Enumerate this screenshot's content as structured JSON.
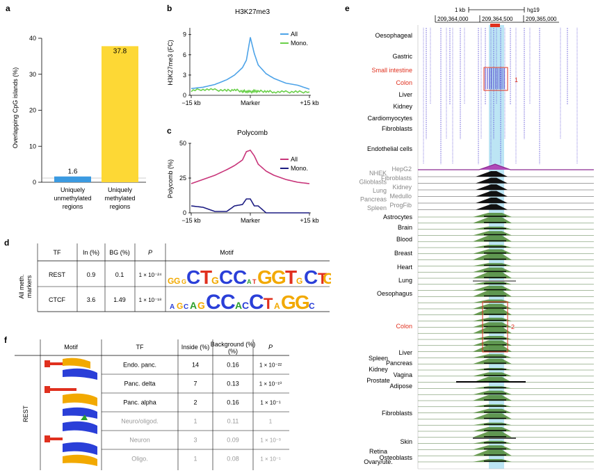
{
  "panel_a": {
    "letter": "a",
    "ylabel": "Overlapping CpG islands (%)",
    "yticks": [
      "0",
      "10",
      "20",
      "30",
      "40"
    ],
    "colors": {
      "unmethylated": "#3b9ae1",
      "methylated": "#fdd835"
    }
  },
  "panel_b": {
    "letter": "b",
    "title": "H3K27me3",
    "ylabel": "H3K27me3 (FC)",
    "yticks": [
      "0",
      "3",
      "6",
      "9"
    ],
    "xticks": [
      "−15 kb",
      "Marker",
      "+15 kb"
    ],
    "legend": [
      "All",
      "Mono."
    ],
    "colors": {
      "all": "#4da3e8",
      "mono": "#6ad04a"
    }
  },
  "panel_c": {
    "letter": "c",
    "title": "Polycomb",
    "ylabel": "Polycomb (%)",
    "yticks": [
      "0",
      "25",
      "50"
    ],
    "xticks": [
      "−15 kb",
      "Marker",
      "+15 kb"
    ],
    "legend": [
      "All",
      "Mono."
    ],
    "colors": {
      "all": "#c8357a",
      "mono": "#1c1c82"
    }
  },
  "chart_data": [
    {
      "type": "bar",
      "categories": [
        "Uniquely unmethylated regions",
        "Uniquely methylated regions"
      ],
      "values": [
        1.6,
        37.8
      ],
      "ylim": [
        0,
        40
      ],
      "ylabel": "Overlapping CpG islands (%)"
    },
    {
      "type": "line",
      "title": "H3K27me3",
      "ylabel": "H3K27me3 (FC)",
      "x": [
        -15,
        -12,
        -9,
        -6,
        -4,
        -2,
        -1,
        0,
        1,
        2,
        4,
        6,
        9,
        12,
        15
      ],
      "ylim": [
        0,
        10
      ],
      "series": [
        {
          "name": "All",
          "values": [
            1.0,
            1.2,
            1.6,
            2.3,
            3.0,
            4.1,
            5.2,
            8.6,
            6.2,
            4.5,
            3.2,
            2.5,
            1.8,
            1.5,
            0.9
          ]
        },
        {
          "name": "Mono.",
          "values": [
            0.7,
            0.9,
            0.8,
            0.7,
            0.8,
            0.6,
            0.6,
            0.5,
            0.6,
            0.6,
            0.6,
            0.5,
            0.5,
            0.5,
            0.5
          ]
        }
      ]
    },
    {
      "type": "line",
      "title": "Polycomb",
      "ylabel": "Polycomb (%)",
      "x": [
        -15,
        -12,
        -9,
        -6,
        -4,
        -2,
        -1,
        0,
        1,
        2,
        4,
        6,
        9,
        12,
        15
      ],
      "ylim": [
        0,
        50
      ],
      "series": [
        {
          "name": "All",
          "values": [
            21,
            24,
            27,
            31,
            34,
            38,
            44,
            45,
            41,
            35,
            30,
            27,
            24,
            22,
            21
          ]
        },
        {
          "name": "Mono.",
          "values": [
            5,
            4,
            1,
            1,
            5,
            6,
            10,
            10,
            5,
            5,
            0,
            0,
            0,
            0,
            0
          ]
        }
      ]
    }
  ],
  "panel_a_bars": [
    {
      "label_lines": [
        "Uniquely",
        "unmethylated",
        "regions"
      ],
      "value_label": "1.6"
    },
    {
      "label_lines": [
        "Uniquely",
        "methylated",
        "regions"
      ],
      "value_label": "37.8"
    }
  ],
  "panel_d": {
    "letter": "d",
    "headers": [
      "TF",
      "In (%)",
      "BG (%)",
      "P",
      "Motif"
    ],
    "row_group_label": [
      "All meth.",
      "markers"
    ],
    "rows": [
      {
        "tf": "REST",
        "in": "0.9",
        "bg": "0.1",
        "p": "1 × 10⁻²⁴"
      },
      {
        "tf": "CTCF",
        "in": "3.6",
        "bg": "1.49",
        "p": "1 × 10⁻¹⁸"
      }
    ]
  },
  "panel_f": {
    "letter": "f",
    "headers": [
      "Motif",
      "TF",
      "Inside (%)",
      "Background (%)",
      "P"
    ],
    "group_label": "REST",
    "rows": [
      {
        "tf": "Endo. panc.",
        "inside": "14",
        "bg": "0.16",
        "p": "1 × 10⁻²²",
        "muted": false
      },
      {
        "tf": "Panc. delta",
        "inside": "7",
        "bg": "0.13",
        "p": "1 × 10⁻¹⁰",
        "muted": false
      },
      {
        "tf": "Panc. alpha",
        "inside": "2",
        "bg": "0.16",
        "p": "1 × 10⁻¹",
        "muted": false
      },
      {
        "tf": "Neuro/oligod.",
        "inside": "1",
        "bg": "0.11",
        "p": "1",
        "muted": true
      },
      {
        "tf": "Neuron",
        "inside": "3",
        "bg": "0.09",
        "p": "1 × 10⁻³",
        "muted": true
      },
      {
        "tf": "Oligo.",
        "inside": "1",
        "bg": "0.08",
        "p": "1 × 10⁻¹",
        "muted": true
      }
    ]
  },
  "panel_e": {
    "letter": "e",
    "scale_label": "1 kb",
    "genome": "hg19",
    "coords": [
      "209,364,000",
      "209,364,500",
      "209,365,000"
    ],
    "box1": "1",
    "box2": "2",
    "top_tracks": [
      {
        "label": "Oesophageal",
        "color": "#000"
      },
      {
        "label": "Gastric",
        "color": "#000"
      },
      {
        "label": "Small intestine",
        "color": "#e0301e"
      },
      {
        "label": "Colon",
        "color": "#e0301e"
      },
      {
        "label": "Liver",
        "color": "#000"
      },
      {
        "label": "Kidney",
        "color": "#000"
      },
      {
        "label": "Cardiomyocytes",
        "color": "#000"
      },
      {
        "label": "Fibroblasts",
        "color": "#000"
      },
      {
        "label": "Endothelial cells",
        "color": "#000"
      }
    ],
    "grey_left": [
      "NHEK",
      "Glioblasts",
      "Lung",
      "Pancreas",
      "Spleen"
    ],
    "grey_right": [
      "HepG2",
      "Fibroblasts",
      "Kidney",
      "Medullo",
      "ProgFib"
    ],
    "bottom_tracks": [
      {
        "label": "Astrocytes",
        "color": "#000"
      },
      {
        "label": "Brain",
        "color": "#000"
      },
      {
        "label": "Blood",
        "color": "#000"
      },
      {
        "label": "Breast",
        "color": "#000"
      },
      {
        "label": "Heart",
        "color": "#000"
      },
      {
        "label": "Lung",
        "color": "#000"
      },
      {
        "label": "Oesophagus",
        "color": "#000"
      },
      {
        "label": "Colon",
        "color": "#e0301e"
      },
      {
        "label": "Liver",
        "color": "#000"
      },
      {
        "label": "Spleen",
        "color": "#000"
      },
      {
        "label": "Pancreas",
        "color": "#000"
      },
      {
        "label": "Kidney",
        "color": "#000"
      },
      {
        "label": "Vagina",
        "color": "#000"
      },
      {
        "label": "Prostate",
        "color": "#000"
      },
      {
        "label": "Adipose",
        "color": "#000"
      },
      {
        "label": "Fibroblasts",
        "color": "#000"
      },
      {
        "label": "Skin",
        "color": "#000"
      },
      {
        "label": "Retina",
        "color": "#000"
      },
      {
        "label": "Osteoblasts",
        "color": "#000"
      },
      {
        "label": "Ovary/ute.",
        "color": "#000"
      }
    ]
  }
}
